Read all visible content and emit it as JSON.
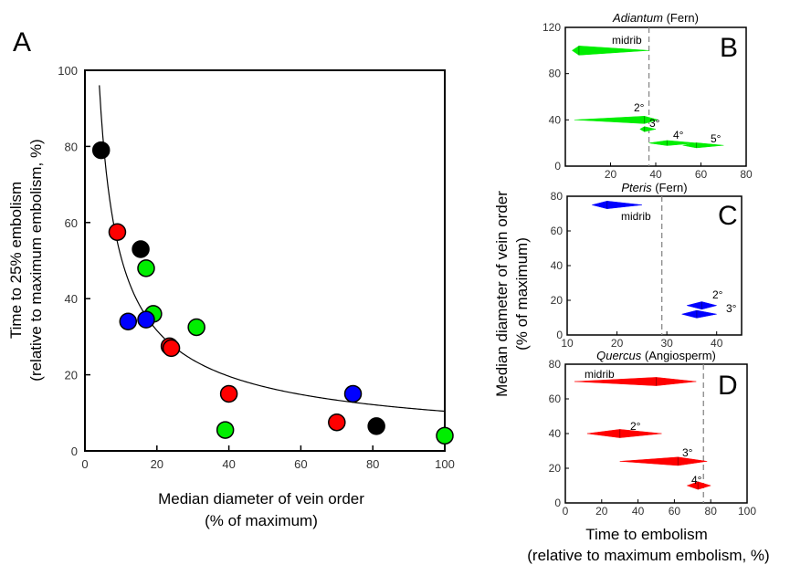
{
  "figure": {
    "shared_y_label": [
      "Median diameter of vein order",
      "(% of maximum)"
    ],
    "shared_x_label": [
      "Time to embolism",
      "(relative to maximum embolism, %)"
    ]
  },
  "chart_data": [
    {
      "id": "A",
      "type": "scatter",
      "panel_letter": "A",
      "ylabel": [
        "Time to 25% embolism",
        "(relative to maximum embolism, %)"
      ],
      "xlabel": [
        "Median diameter of vein order",
        "(% of maximum)"
      ],
      "xlim": [
        0,
        100
      ],
      "ylim": [
        0,
        100
      ],
      "xticks": [
        0,
        20,
        40,
        60,
        80,
        100
      ],
      "yticks": [
        0,
        20,
        40,
        60,
        80,
        100
      ],
      "grid": false,
      "series": [
        {
          "color": "#000000",
          "points": [
            [
              4.5,
              79
            ],
            [
              15.5,
              53
            ],
            [
              81,
              6.5
            ]
          ]
        },
        {
          "color": "#ff0000",
          "points": [
            [
              9,
              57.5
            ],
            [
              23.5,
              27.5
            ],
            [
              24,
              27
            ],
            [
              40,
              15
            ],
            [
              70,
              7.5
            ]
          ]
        },
        {
          "color": "#00ee00",
          "points": [
            [
              17,
              48
            ],
            [
              19,
              36
            ],
            [
              31,
              32.5
            ],
            [
              39,
              5.5
            ],
            [
              100,
              4
            ]
          ]
        },
        {
          "color": "#0000ff",
          "points": [
            [
              12,
              34
            ],
            [
              17,
              34.5
            ],
            [
              74.5,
              15
            ]
          ]
        }
      ],
      "fit_curve": {
        "type": "power",
        "a": 250,
        "b": -0.69,
        "x_range": [
          4,
          100
        ]
      }
    },
    {
      "id": "B",
      "type": "bar",
      "panel_letter": "B",
      "title_italic": "Adiantum",
      "title_rest": " (Fern)",
      "xlim": [
        0,
        80
      ],
      "ylim": [
        0,
        120
      ],
      "xticks": [
        20,
        40,
        60,
        80
      ],
      "yticks": [
        0,
        40,
        80,
        120
      ],
      "xtick_labels": [
        "20",
        "40",
        "60",
        "80"
      ],
      "reference_x": 37,
      "color": "#00ee00",
      "bars": [
        {
          "label": "midrib",
          "y": 100,
          "start": 3,
          "peak": 6,
          "end": 37,
          "half_height": 4
        },
        {
          "label": "2°",
          "y": 40,
          "start": 4,
          "peak": 35,
          "end": 41,
          "half_height": 3.2
        },
        {
          "label": "3°",
          "y": 32,
          "start": 33,
          "peak": 35,
          "end": 40,
          "half_height": 2.2
        },
        {
          "label": "4°",
          "y": 20,
          "start": 37,
          "peak": 45,
          "end": 58,
          "half_height": 2.2
        },
        {
          "label": "5°",
          "y": 18,
          "start": 52,
          "peak": 58,
          "end": 70,
          "half_height": 2.2
        }
      ]
    },
    {
      "id": "C",
      "type": "bar",
      "panel_letter": "C",
      "title_italic": "Pteris",
      "title_rest": " (Fern)",
      "xlim": [
        10,
        45
      ],
      "ylim": [
        0,
        80
      ],
      "xticks": [
        10,
        20,
        30,
        40
      ],
      "yticks": [
        0,
        20,
        40,
        60,
        80
      ],
      "xtick_labels": [
        "10",
        "20",
        "30",
        "40"
      ],
      "reference_x": 29,
      "color": "#0000ff",
      "bars": [
        {
          "label": "midrib",
          "y": 75,
          "start": 15,
          "peak": 18,
          "end": 25,
          "half_height": 2.2
        },
        {
          "label": "2°",
          "y": 17,
          "start": 34,
          "peak": 37,
          "end": 40,
          "half_height": 2.2
        },
        {
          "label": "3°",
          "y": 12,
          "start": 33,
          "peak": 36,
          "end": 40,
          "half_height": 2.2
        }
      ]
    },
    {
      "id": "D",
      "type": "bar",
      "panel_letter": "D",
      "title_italic": "Quercus",
      "title_rest": " (Angiosperm)",
      "xlim": [
        0,
        100
      ],
      "ylim": [
        0,
        80
      ],
      "xticks": [
        0,
        20,
        40,
        60,
        80,
        100
      ],
      "yticks": [
        0,
        20,
        40,
        60,
        80
      ],
      "xtick_labels": [
        "0",
        "20",
        "40",
        "60",
        "80",
        "100"
      ],
      "reference_x": 76,
      "color": "#ff0000",
      "bars": [
        {
          "label": "midrib",
          "y": 70,
          "start": 5,
          "peak": 50,
          "end": 72,
          "half_height": 2.4
        },
        {
          "label": "2°",
          "y": 40,
          "start": 12,
          "peak": 30,
          "end": 53,
          "half_height": 2.4
        },
        {
          "label": "3°",
          "y": 24,
          "start": 30,
          "peak": 62,
          "end": 78,
          "half_height": 2.4
        },
        {
          "label": "4°",
          "y": 10,
          "start": 67,
          "peak": 73,
          "end": 80,
          "half_height": 2.2
        }
      ]
    }
  ]
}
